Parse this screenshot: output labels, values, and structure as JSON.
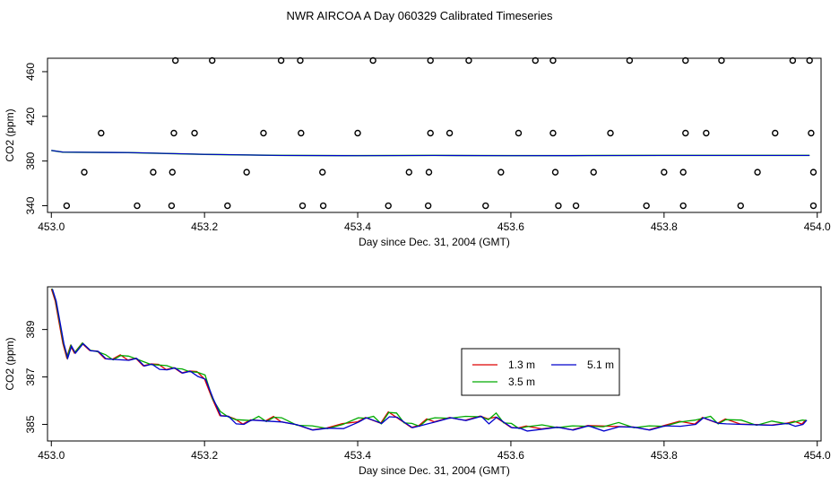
{
  "title": "NWR AIRCOA A  Day 060329  Calibrated Timeseries",
  "colors": {
    "line_1_3m": "#dd0000",
    "line_3_5m": "#00aa00",
    "line_5_1m": "#0000cc",
    "axis": "#000000"
  },
  "chart_data": [
    {
      "type": "scatter",
      "ylabel": "CO2 (ppm)",
      "xlabel": "Day since Dec. 31, 2004 (GMT)",
      "xlim": [
        452.995,
        454.005
      ],
      "ylim": [
        334,
        472
      ],
      "xticks": [
        "453.0",
        "453.2",
        "453.4",
        "453.6",
        "453.8",
        "454.0"
      ],
      "yticks": [
        "340",
        "380",
        "420",
        "460"
      ],
      "scatter_points": [
        [
          453.065,
          405
        ],
        [
          453.162,
          470
        ],
        [
          453.21,
          470
        ],
        [
          453.3,
          470
        ],
        [
          453.325,
          470
        ],
        [
          453.42,
          470
        ],
        [
          453.495,
          470
        ],
        [
          453.545,
          470
        ],
        [
          453.632,
          470
        ],
        [
          453.655,
          470
        ],
        [
          453.755,
          470
        ],
        [
          453.828,
          470
        ],
        [
          453.875,
          470
        ],
        [
          453.968,
          470
        ],
        [
          453.99,
          470
        ],
        [
          453.16,
          405
        ],
        [
          453.187,
          405
        ],
        [
          453.277,
          405
        ],
        [
          453.326,
          405
        ],
        [
          453.4,
          405
        ],
        [
          453.495,
          405
        ],
        [
          453.52,
          405
        ],
        [
          453.61,
          405
        ],
        [
          453.655,
          405
        ],
        [
          453.73,
          405
        ],
        [
          453.828,
          405
        ],
        [
          453.855,
          405
        ],
        [
          453.945,
          405
        ],
        [
          453.992,
          405
        ],
        [
          453.043,
          370
        ],
        [
          453.133,
          370
        ],
        [
          453.158,
          370
        ],
        [
          453.255,
          370
        ],
        [
          453.354,
          370
        ],
        [
          453.467,
          370
        ],
        [
          453.493,
          370
        ],
        [
          453.587,
          370
        ],
        [
          453.658,
          370
        ],
        [
          453.708,
          370
        ],
        [
          453.8,
          370
        ],
        [
          453.825,
          370
        ],
        [
          453.922,
          370
        ],
        [
          453.995,
          370
        ],
        [
          453.02,
          340
        ],
        [
          453.112,
          340
        ],
        [
          453.157,
          340
        ],
        [
          453.23,
          340
        ],
        [
          453.328,
          340
        ],
        [
          453.355,
          340
        ],
        [
          453.44,
          340
        ],
        [
          453.492,
          340
        ],
        [
          453.567,
          340
        ],
        [
          453.662,
          340
        ],
        [
          453.685,
          340
        ],
        [
          453.777,
          340
        ],
        [
          453.825,
          340
        ],
        [
          453.9,
          340
        ],
        [
          453.995,
          340
        ]
      ],
      "line": {
        "x": [
          453.0,
          453.015,
          453.05,
          453.1,
          453.2,
          453.3,
          453.4,
          453.5,
          453.6,
          453.7,
          453.8,
          453.9,
          453.99
        ],
        "y": [
          389.5,
          388,
          387.8,
          387.6,
          386,
          385,
          384.8,
          385,
          384.8,
          384.9,
          385,
          385,
          385
        ]
      }
    },
    {
      "type": "line",
      "ylabel": "CO2 (ppm)",
      "xlabel": "Day since Dec. 31, 2004 (GMT)",
      "xlim": [
        452.995,
        454.005
      ],
      "ylim": [
        384.3,
        390.8
      ],
      "xticks": [
        "453.0",
        "453.2",
        "453.4",
        "453.6",
        "453.8",
        "454.0"
      ],
      "yticks": [
        "385",
        "387",
        "389"
      ],
      "legend": {
        "position": "center-right",
        "entries": [
          "1.3 m",
          "3.5 m",
          "5.1 m"
        ]
      },
      "series": [
        {
          "name": "1.3 m",
          "offset": 0.05
        },
        {
          "name": "3.5 m",
          "offset": 0.1
        },
        {
          "name": "5.1 m",
          "offset": 0.0
        }
      ],
      "base": {
        "x": [
          453.0,
          453.005,
          453.01,
          453.015,
          453.02,
          453.025,
          453.03,
          453.04,
          453.05,
          453.06,
          453.07,
          453.08,
          453.09,
          453.1,
          453.11,
          453.12,
          453.13,
          453.14,
          453.15,
          453.16,
          453.17,
          453.18,
          453.19,
          453.2,
          453.21,
          453.22,
          453.23,
          453.24,
          453.25,
          453.26,
          453.27,
          453.28,
          453.29,
          453.3,
          453.32,
          453.34,
          453.36,
          453.38,
          453.4,
          453.41,
          453.42,
          453.43,
          453.44,
          453.45,
          453.46,
          453.47,
          453.48,
          453.49,
          453.5,
          453.52,
          453.54,
          453.56,
          453.57,
          453.58,
          453.59,
          453.6,
          453.61,
          453.62,
          453.64,
          453.66,
          453.68,
          453.7,
          453.72,
          453.74,
          453.76,
          453.78,
          453.8,
          453.82,
          453.84,
          453.85,
          453.86,
          453.87,
          453.88,
          453.9,
          453.92,
          453.94,
          453.96,
          453.97,
          453.98,
          453.985
        ],
        "y": [
          390.7,
          390.2,
          389.3,
          388.4,
          387.8,
          388.3,
          388.0,
          388.4,
          388.1,
          388.0,
          387.8,
          387.7,
          387.8,
          387.7,
          387.7,
          387.5,
          387.5,
          387.4,
          387.3,
          387.3,
          387.2,
          387.2,
          387.1,
          386.9,
          386.0,
          385.4,
          385.3,
          385.1,
          385.0,
          385.1,
          385.2,
          385.1,
          385.2,
          385.1,
          384.9,
          384.8,
          384.8,
          384.9,
          385.1,
          385.2,
          385.2,
          385.0,
          385.4,
          385.3,
          385.0,
          384.9,
          384.9,
          385.1,
          385.1,
          385.2,
          385.2,
          385.3,
          385.1,
          385.3,
          385.0,
          384.9,
          384.8,
          384.8,
          384.8,
          384.8,
          384.8,
          384.9,
          384.8,
          384.9,
          384.8,
          384.8,
          384.9,
          385.0,
          385.0,
          385.2,
          385.2,
          385.0,
          385.1,
          385.0,
          384.9,
          385.0,
          385.0,
          385.0,
          385.0,
          385.1
        ]
      }
    }
  ]
}
